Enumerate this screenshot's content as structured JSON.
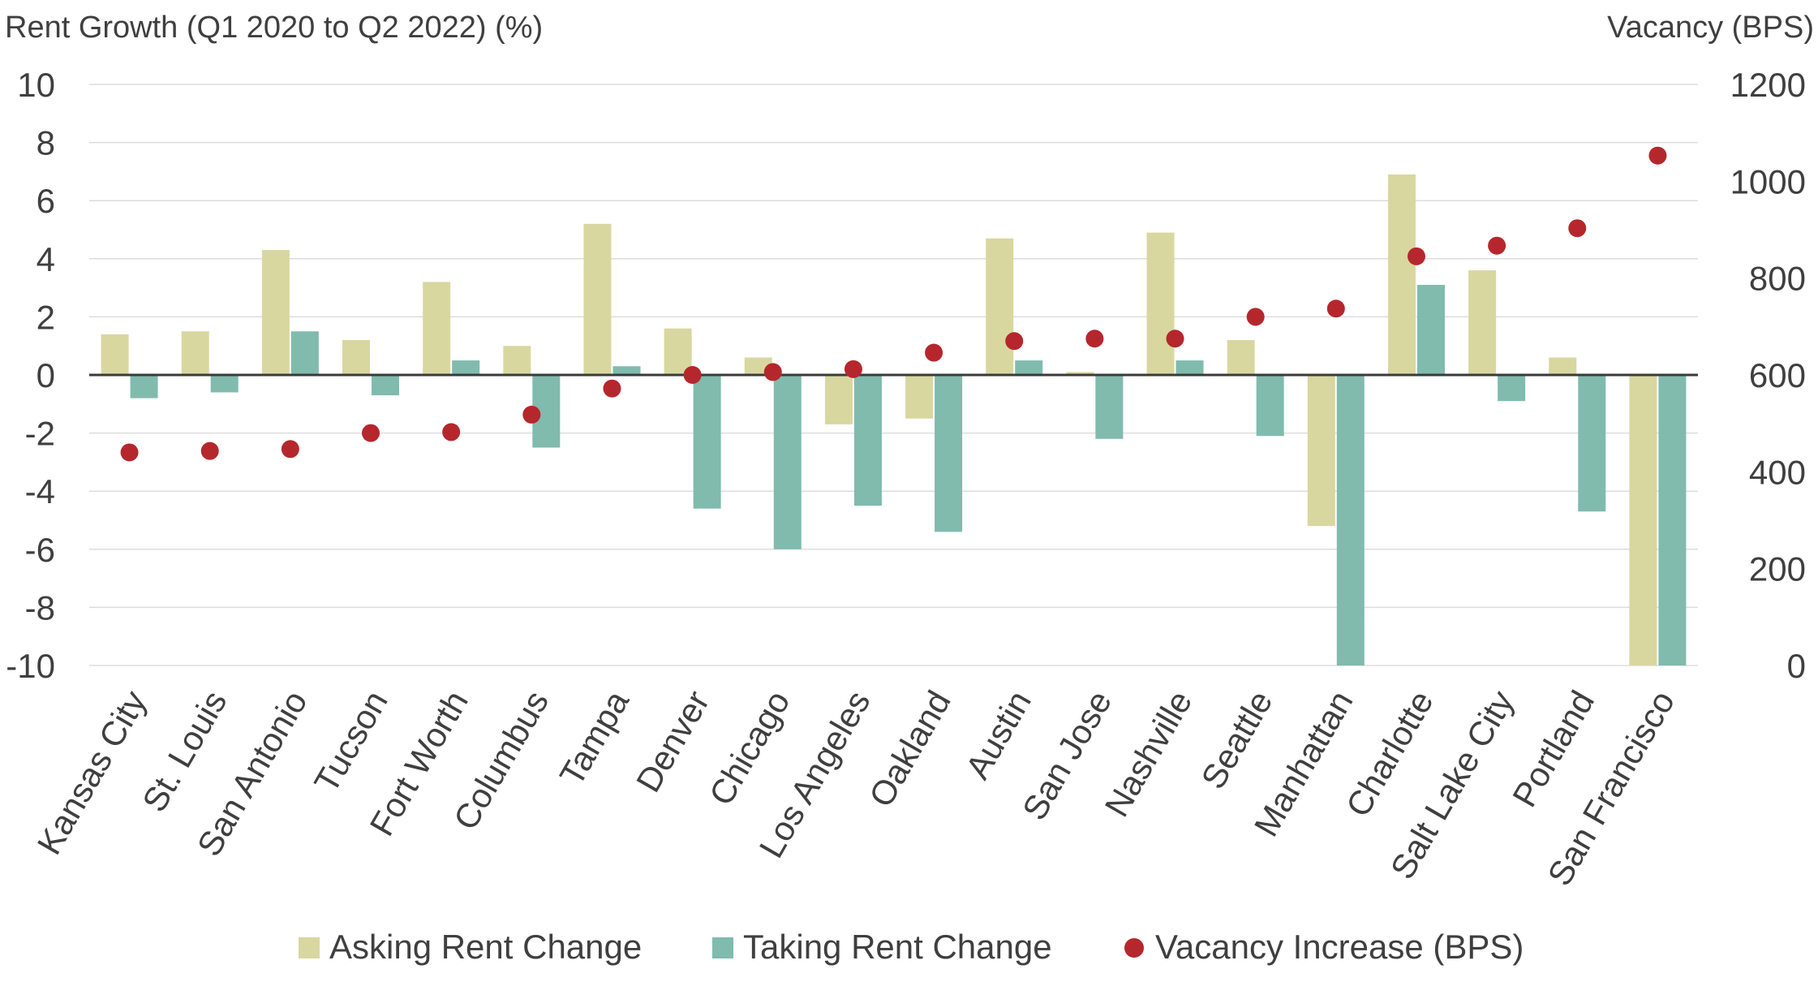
{
  "chart_data": {
    "type": "bar",
    "left_axis_title": "Rent Growth (Q1 2020 to Q2 2022) (%)",
    "right_axis_title": "Vacancy (BPS)",
    "categories": [
      "Kansas City",
      "St. Louis",
      "San Antonio",
      "Tucson",
      "Fort Worth",
      "Columbus",
      "Tampa",
      "Denver",
      "Chicago",
      "Los Angeles",
      "Oakland",
      "Austin",
      "San Jose",
      "Nashville",
      "Seattle",
      "Manhattan",
      "Charlotte",
      "Salt Lake City",
      "Portland",
      "San Francisco"
    ],
    "ylim": [
      -10,
      10
    ],
    "yticks": [
      "10",
      "8",
      "6",
      "4",
      "2",
      "0",
      "-2",
      "-4",
      "-6",
      "-8",
      "-10"
    ],
    "y2lim": [
      0,
      1200
    ],
    "y2ticks": [
      "1200",
      "1000",
      "800",
      "600",
      "400",
      "200",
      "0"
    ],
    "series": [
      {
        "name": "Asking Rent Change",
        "kind": "bar",
        "axis": "left",
        "color": "#d9d7a0",
        "values": [
          1.4,
          1.5,
          4.3,
          1.2,
          3.2,
          1.0,
          5.2,
          1.6,
          0.6,
          -1.7,
          -1.5,
          4.7,
          0.1,
          4.9,
          1.2,
          -5.2,
          6.9,
          3.6,
          0.6,
          -10.0
        ]
      },
      {
        "name": "Taking Rent Change",
        "kind": "bar",
        "axis": "left",
        "color": "#80bbae",
        "values": [
          -0.8,
          -0.6,
          1.5,
          -0.7,
          0.5,
          -2.5,
          0.3,
          -4.6,
          -6.0,
          -4.5,
          -5.4,
          0.5,
          -2.2,
          0.5,
          -2.1,
          -10.0,
          3.1,
          -0.9,
          -4.7,
          -10.0
        ]
      },
      {
        "name": "Vacancy Increase (BPS)",
        "kind": "scatter",
        "axis": "right",
        "color": "#b5272d",
        "values": [
          440,
          443,
          447,
          480,
          482,
          518,
          572,
          600,
          606,
          612,
          646,
          670,
          675,
          675,
          720,
          737,
          845,
          867,
          903,
          1053
        ]
      }
    ],
    "legend_position": "bottom"
  }
}
